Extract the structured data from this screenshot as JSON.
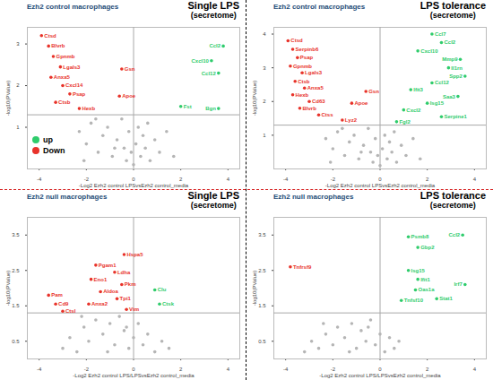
{
  "chart_data": [
    {
      "type": "scatter",
      "panel_label": "Ezh2 control macrophages",
      "title": "Single LPS",
      "subtitle": "(secretome)",
      "x_label": "-Log2 Ezh2 control LPSvsEzh2 control_media",
      "y_label": "-log10(PValue)",
      "xlim": [
        -4.5,
        4.5
      ],
      "xticks": [
        -4,
        -2,
        0,
        2,
        4
      ],
      "ylim": [
        0,
        3.4
      ],
      "yticks": [
        1,
        2,
        3
      ],
      "reference_lines": {
        "x": 0,
        "y": 1.3
      },
      "legend": "left",
      "series": [
        {
          "name": "up",
          "color": "#2fcc6c",
          "x": [
            3.8,
            3.3,
            3.6,
            2.0,
            3.6
          ],
          "values": [
            2.95,
            2.6,
            2.3,
            1.5,
            1.45
          ],
          "labels": [
            "Ccl2",
            "Cxcl10",
            "Ccl12",
            "Fst",
            "Bgn"
          ]
        },
        {
          "name": "Down",
          "color": "#e8322a",
          "x": [
            -3.9,
            -3.6,
            -3.4,
            -3.1,
            -3.5,
            -3.0,
            -2.7,
            -3.3,
            -2.3,
            -0.5,
            -0.6
          ],
          "values": [
            3.2,
            2.95,
            2.7,
            2.45,
            2.2,
            2.0,
            1.8,
            1.6,
            1.45,
            2.4,
            1.75
          ],
          "labels": [
            "Ctsd",
            "Blvrb",
            "Gpnmb",
            "Lgals3",
            "Anxa5",
            "Cxcl14",
            "Psap",
            "Ctsb",
            "Hexb",
            "Gsn",
            "Apoe"
          ]
        },
        {
          "color": "#b5b5b5",
          "x": [
            -2.3,
            -2.0,
            -1.8,
            -1.5,
            -1.3,
            -1.1,
            -0.9,
            -0.7,
            -0.5,
            -0.4,
            -0.3,
            -0.2,
            -0.1,
            0.0,
            0.1,
            0.2,
            0.3,
            0.4,
            0.5,
            0.7,
            0.9,
            1.1,
            1.4,
            1.7,
            -1.6,
            -0.8,
            0.6,
            -2.1
          ],
          "values": [
            0.9,
            0.6,
            1.1,
            0.4,
            0.8,
            1.0,
            0.3,
            0.7,
            1.2,
            0.5,
            0.2,
            0.9,
            0.4,
            0.1,
            0.6,
            1.0,
            0.3,
            0.8,
            0.5,
            0.2,
            0.7,
            0.4,
            0.9,
            0.3,
            1.2,
            0.5,
            1.1,
            0.2
          ]
        }
      ]
    },
    {
      "type": "scatter",
      "panel_label": "Ezh2 control macrophages",
      "title": "LPS tolerance",
      "subtitle": "(secretome)",
      "x_label": "-Log2 Ezh2 control LPSvsEzh2 control_media",
      "y_label": "-log10(PValue)",
      "xlim": [
        -4.5,
        4.5
      ],
      "xticks": [
        -4,
        -2,
        0,
        2,
        4
      ],
      "ylim": [
        0,
        4.2
      ],
      "yticks": [
        1,
        2,
        3,
        4
      ],
      "reference_lines": {
        "x": 0,
        "y": 1.3
      },
      "series": [
        {
          "name": "up",
          "color": "#2fcc6c",
          "x": [
            2.2,
            2.6,
            1.6,
            3.4,
            2.9,
            3.6,
            2.2,
            1.3,
            3.3,
            2.0,
            1.0,
            2.6,
            0.7
          ],
          "values": [
            4.0,
            3.75,
            3.5,
            3.25,
            3.0,
            2.75,
            2.55,
            2.35,
            2.15,
            1.95,
            1.75,
            1.55,
            1.4
          ],
          "labels": [
            "Ccl7",
            "Ccl2",
            "Cxcl10",
            "Mmp9",
            "Il1rn",
            "Spp2",
            "Ccl12",
            "Ifit3",
            "Saa3",
            "Isg15",
            "Cxcl2",
            "Serpine1",
            "Fgl2"
          ]
        },
        {
          "name": "Down",
          "color": "#e8322a",
          "x": [
            -3.9,
            -3.7,
            -3.5,
            -3.8,
            -3.3,
            -3.6,
            -3.2,
            -3.7,
            -3.0,
            -3.4,
            -2.6,
            -1.6,
            -0.6,
            -1.2
          ],
          "values": [
            3.8,
            3.55,
            3.3,
            3.05,
            2.85,
            2.6,
            2.4,
            2.2,
            2.0,
            1.8,
            1.6,
            1.45,
            2.3,
            1.95
          ],
          "labels": [
            "Ctsd",
            "Serpinb6",
            "Psap",
            "Gpnmb",
            "Lgals3",
            "Ctsb",
            "Anxa5",
            "Hexb",
            "Cd63",
            "Blvrb",
            "Ctss",
            "Lyz2",
            "Gsn",
            "Apoe"
          ]
        },
        {
          "color": "#b5b5b5",
          "x": [
            -2.3,
            -2.0,
            -1.8,
            -1.5,
            -1.3,
            -1.1,
            -0.9,
            -0.7,
            -0.5,
            -0.4,
            -0.3,
            -0.2,
            -0.1,
            0.0,
            0.1,
            0.2,
            0.3,
            0.4,
            0.5,
            0.7,
            0.9,
            1.1,
            1.4,
            1.7,
            -1.6,
            -0.8,
            0.6,
            -2.1
          ],
          "values": [
            0.9,
            0.6,
            1.1,
            0.4,
            0.8,
            1.0,
            0.3,
            0.7,
            1.2,
            0.5,
            0.2,
            0.9,
            0.4,
            0.1,
            0.6,
            1.0,
            0.3,
            0.8,
            0.5,
            0.2,
            0.7,
            0.4,
            0.9,
            0.3,
            1.2,
            0.5,
            1.1,
            0.2
          ]
        }
      ]
    },
    {
      "type": "scatter",
      "panel_label": "Ezh2 null macrophages",
      "title": "Single LPS",
      "subtitle": "(secretome)",
      "x_label": "-Log2 Ezh2 control LPS/LPSvsEzh2 control_media",
      "y_label": "-log10(PValue)",
      "xlim": [
        -4.5,
        4.5
      ],
      "xticks": [
        -4,
        -2,
        0,
        2,
        4
      ],
      "ylim": [
        0,
        4
      ],
      "yticks": [
        0.5,
        1.5,
        2.5,
        3.5
      ],
      "reference_lines": {
        "x": 0,
        "y": 1.3
      },
      "series": [
        {
          "name": "up",
          "color": "#2fcc6c",
          "x": [
            0.9,
            1.1
          ],
          "values": [
            1.95,
            1.55
          ],
          "labels": [
            "Clu",
            "Ctsk"
          ]
        },
        {
          "name": "Down",
          "color": "#e8322a",
          "x": [
            -3.6,
            -3.3,
            -3.0,
            -0.4,
            -1.6,
            -0.8,
            -1.8,
            -0.5,
            -1.4,
            -0.7,
            -1.9,
            -0.3
          ],
          "values": [
            1.8,
            1.55,
            1.35,
            2.95,
            2.65,
            2.45,
            2.25,
            2.1,
            1.9,
            1.7,
            1.55,
            1.4
          ],
          "labels": [
            "Pam",
            "Cd9",
            "Ctsl",
            "Hspa5",
            "Pgam1",
            "Ldha",
            "Eno1",
            "Pkm",
            "Aldoa",
            "Tpi1",
            "Anxa2",
            "Vim"
          ]
        },
        {
          "color": "#b5b5b5",
          "x": [
            -3.0,
            -2.7,
            -2.4,
            -2.1,
            -1.9,
            -1.6,
            -1.3,
            -1.0,
            -0.8,
            -0.6,
            -0.4,
            -0.2,
            0.0,
            0.2,
            0.4,
            0.6,
            0.9,
            1.2,
            1.5,
            -2.2,
            -1.1,
            -0.3
          ],
          "values": [
            0.3,
            0.6,
            0.2,
            0.9,
            0.5,
            1.1,
            0.7,
            1.0,
            0.4,
            1.2,
            0.8,
            0.3,
            0.6,
            1.0,
            0.4,
            0.7,
            0.2,
            0.5,
            0.3,
            1.2,
            0.2,
            0.9
          ]
        }
      ]
    },
    {
      "type": "scatter",
      "panel_label": "Ezh2 null macrophages",
      "title": "LPS tolerance",
      "subtitle": "(secretome)",
      "x_label": "-Log2 Ezh2 control LPS/LPSvsEzh2 control_media",
      "y_label": "-log10(PValue)",
      "xlim": [
        -4.5,
        4.5
      ],
      "xticks": [
        -4,
        -2,
        0,
        2,
        4
      ],
      "ylim": [
        0,
        4
      ],
      "yticks": [
        0.5,
        1.5,
        2.5,
        3.5
      ],
      "reference_lines": {
        "x": 0,
        "y": 1.3
      },
      "series": [
        {
          "name": "up",
          "color": "#2fcc6c",
          "x": [
            1.2,
            3.5,
            1.6,
            1.2,
            1.6,
            3.6,
            1.5,
            0.9,
            2.4
          ],
          "values": [
            3.45,
            3.5,
            3.15,
            2.5,
            2.25,
            2.1,
            1.95,
            1.65,
            1.7
          ],
          "labels": [
            "Psmb8",
            "Ccl2",
            "Gbp2",
            "Isg15",
            "Ifit1",
            "Irf7",
            "Oas1a",
            "Tnfsf10",
            "Stat1"
          ]
        },
        {
          "name": "Down",
          "color": "#e8322a",
          "x": [
            -3.8
          ],
          "values": [
            2.6
          ],
          "labels": [
            "Tnfrsf9"
          ]
        },
        {
          "color": "#b5b5b5",
          "x": [
            -3.2,
            -2.9,
            -2.6,
            -2.3,
            -2.0,
            -1.8,
            -1.5,
            -1.2,
            -1.0,
            -0.8,
            -0.6,
            -0.4,
            -0.2,
            0.0,
            0.2,
            0.4,
            0.6,
            0.8,
            -2.4,
            -1.3,
            -0.5
          ],
          "values": [
            0.2,
            0.5,
            0.3,
            0.7,
            0.4,
            0.9,
            0.6,
            1.0,
            0.3,
            0.8,
            0.5,
            1.1,
            0.4,
            0.7,
            0.2,
            0.6,
            0.3,
            0.5,
            1.0,
            0.2,
            0.9
          ]
        }
      ]
    }
  ]
}
